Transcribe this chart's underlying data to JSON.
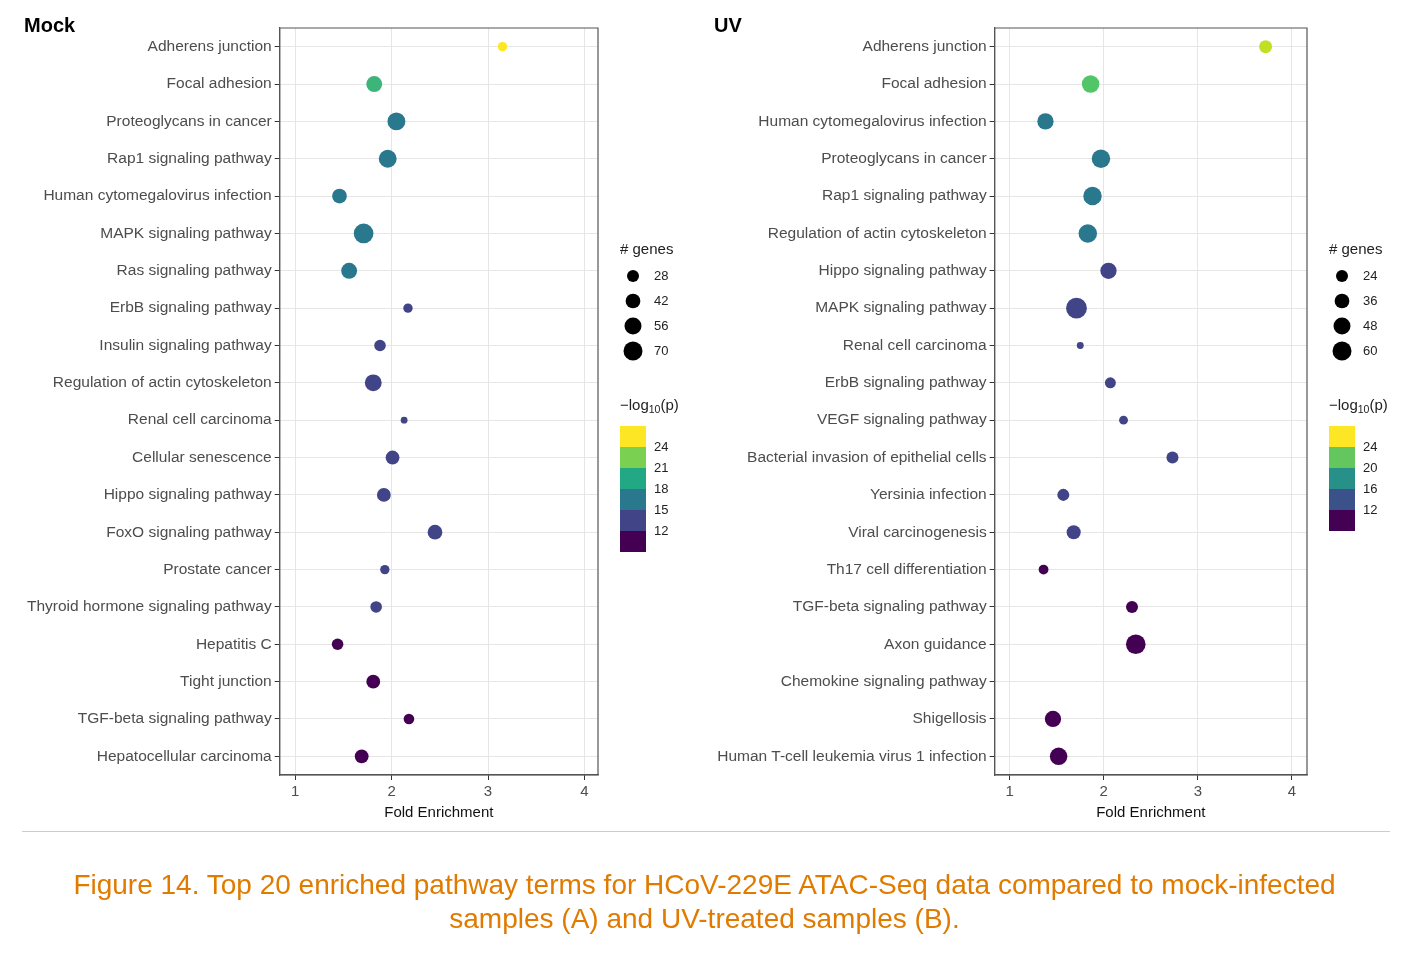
{
  "chart_data": [
    {
      "type": "bubble",
      "orientation": "horizontal",
      "title": "Mock",
      "xlabel": "Fold Enrichment",
      "categories": [
        "Adherens junction",
        "Focal adhesion",
        "Proteoglycans in cancer",
        "Rap1 signaling pathway",
        "Human cytomegalovirus infection",
        "MAPK signaling pathway",
        "Ras signaling pathway",
        "ErbB signaling pathway",
        "Insulin signaling pathway",
        "Regulation of actin cytoskeleton",
        "Renal cell carcinoma",
        "Cellular senescence",
        "Hippo signaling pathway",
        "FoxO signaling pathway",
        "Prostate cancer",
        "Thyroid hormone signaling pathway",
        "Hepatitis C",
        "Tight junction",
        "TGF-beta signaling pathway",
        "Hepatocellular carcinoma"
      ],
      "values": [
        3.15,
        1.82,
        2.05,
        1.96,
        1.46,
        1.71,
        1.56,
        2.17,
        1.88,
        1.81,
        2.13,
        2.01,
        1.92,
        2.45,
        1.93,
        1.84,
        1.44,
        1.81,
        2.18,
        1.69
      ],
      "sizes": [
        17,
        49,
        62,
        62,
        42,
        75,
        49,
        17,
        26,
        55,
        9,
        37,
        37,
        42,
        17,
        26,
        26,
        37,
        22,
        37
      ],
      "colors": [
        "#fde725",
        "#3cb47a",
        "#2a788e",
        "#2a788e",
        "#2a788e",
        "#2a788e",
        "#2a788e",
        "#414487",
        "#414487",
        "#414487",
        "#414487",
        "#414487",
        "#414487",
        "#414487",
        "#414487",
        "#414487",
        "#440154",
        "#440154",
        "#440154",
        "#440154"
      ],
      "xlim": [
        0.84,
        4.14
      ],
      "xticks": [
        1,
        2,
        3,
        4
      ],
      "grid": true,
      "legend_title": "# genes",
      "size_legend": [
        28,
        42,
        56,
        70
      ],
      "clabel": "−log$_{10}$(p)",
      "clim": [
        9,
        27
      ],
      "cticks": [
        12,
        15,
        18,
        21,
        24
      ],
      "annotations": [
        "Figure 14. Top 20 enriched pathway terms for HCoV-229E ATAC-Seq data compared to mock-infected samples (A) and UV-treated samples (B)."
      ]
    },
    {
      "type": "bubble",
      "orientation": "horizontal",
      "title": "UV",
      "xlabel": "Fold Enrichment",
      "categories": [
        "Adherens junction",
        "Focal adhesion",
        "Human cytomegalovirus infection",
        "Proteoglycans in cancer",
        "Rap1 signaling pathway",
        "Regulation of actin cytoskeleton",
        "Hippo signaling pathway",
        "MAPK signaling pathway",
        "Renal cell carcinoma",
        "ErbB signaling pathway",
        "VEGF signaling pathway",
        "Bacterial invasion of epithelial cells",
        "Yersinia infection",
        "Viral carcinogenesis",
        "Th17 cell differentiation",
        "TGF-beta signaling pathway",
        "Axon guidance",
        "Chemokine signaling pathway",
        "Shigellosis",
        "Human T-cell leukemia virus 1 infection"
      ],
      "values": [
        3.72,
        1.86,
        1.38,
        1.97,
        1.88,
        1.83,
        2.05,
        1.71,
        1.75,
        2.07,
        2.21,
        2.73,
        1.57,
        1.68,
        1.36,
        2.3,
        2.34,
        null,
        1.46,
        1.52
      ],
      "sizes": [
        28,
        51,
        44,
        57,
        57,
        57,
        44,
        72,
        8,
        20,
        13,
        24,
        24,
        33,
        16,
        24,
        64,
        null,
        44,
        51
      ],
      "colors": [
        "#c2df23",
        "#52c569",
        "#2a788e",
        "#2a788e",
        "#2a788e",
        "#2a788e",
        "#414487",
        "#414487",
        "#414487",
        "#414487",
        "#414487",
        "#414487",
        "#414487",
        "#414487",
        "#440154",
        "#440154",
        "#440154",
        null,
        "#440154",
        "#440154"
      ],
      "xlim": [
        0.84,
        4.16
      ],
      "xticks": [
        1,
        2,
        3,
        4
      ],
      "grid": true,
      "legend_title": "# genes",
      "size_legend": [
        24,
        36,
        48,
        60
      ],
      "clabel": "−log$_{10}$(p)",
      "clim": [
        8,
        28
      ],
      "cticks": [
        12,
        16,
        20,
        24
      ]
    }
  ]
}
